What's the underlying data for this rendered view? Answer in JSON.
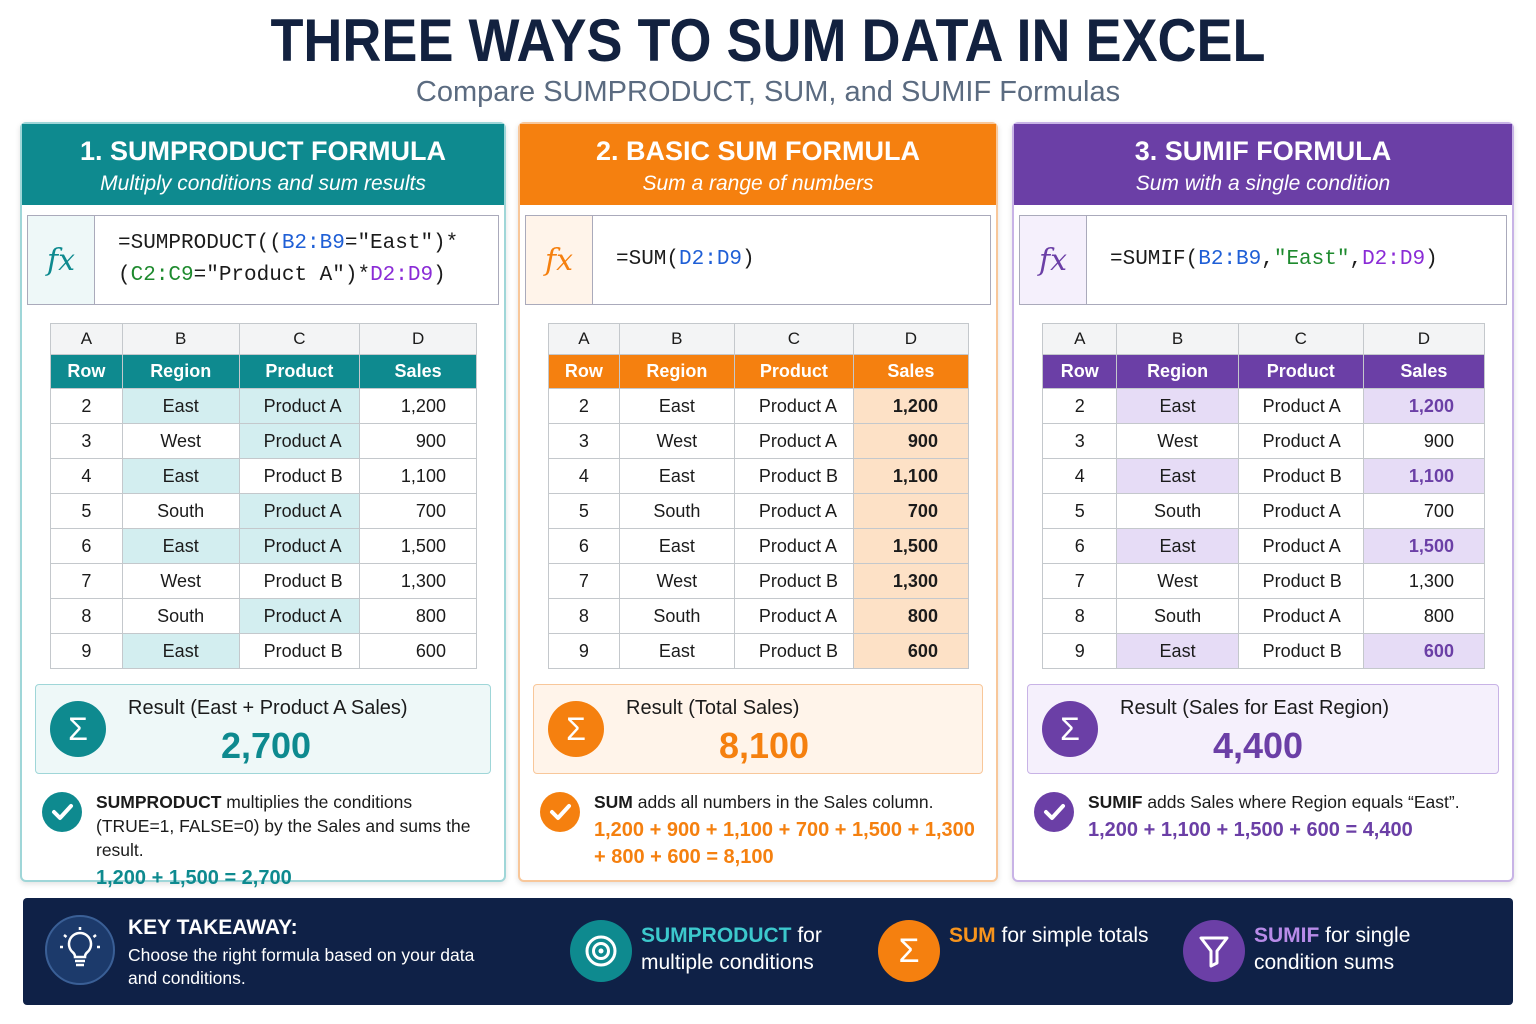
{
  "header": {
    "title": "THREE WAYS TO SUM DATA IN EXCEL",
    "subtitle": "Compare SUMPRODUCT, SUM, and SUMIF Formulas"
  },
  "fx_symbol": "fx",
  "sigma": "Σ",
  "panels": [
    {
      "title": "1. SUMPRODUCT FORMULA",
      "subtitle": "Multiply conditions and sum results",
      "color": "#0e8a8f",
      "light": "#d3eef0",
      "border": "#9fd6d8",
      "result_bg": "#eef8f8",
      "hl_text": "#1b1b1b",
      "formula": [
        [
          {
            "text": "=SUMPRODUCT((",
            "color": "#1b1b1b"
          },
          {
            "text": "B2:B9",
            "color": "#1f5fd6"
          },
          {
            "text": "=\"East\")*",
            "color": "#1b1b1b"
          }
        ],
        [
          {
            "text": "(",
            "color": "#1b1b1b"
          },
          {
            "text": "C2:C9",
            "color": "#1e8a2e"
          },
          {
            "text": "=\"Product A\")*",
            "color": "#1b1b1b"
          },
          {
            "text": "D2:D9",
            "color": "#8a2bd6"
          },
          {
            "text": ")",
            "color": "#1b1b1b"
          }
        ]
      ],
      "letters": [
        "A",
        "B",
        "C",
        "D"
      ],
      "headers": [
        "Row",
        "Region",
        "Product",
        "Sales"
      ],
      "rows": [
        {
          "cells": [
            "2",
            "East",
            "Product A",
            "1,200"
          ],
          "hl": [
            false,
            true,
            true,
            false
          ]
        },
        {
          "cells": [
            "3",
            "West",
            "Product A",
            "900"
          ],
          "hl": [
            false,
            false,
            true,
            false
          ]
        },
        {
          "cells": [
            "4",
            "East",
            "Product B",
            "1,100"
          ],
          "hl": [
            false,
            true,
            false,
            false
          ]
        },
        {
          "cells": [
            "5",
            "South",
            "Product A",
            "700"
          ],
          "hl": [
            false,
            false,
            true,
            false
          ]
        },
        {
          "cells": [
            "6",
            "East",
            "Product A",
            "1,500"
          ],
          "hl": [
            false,
            true,
            true,
            false
          ]
        },
        {
          "cells": [
            "7",
            "West",
            "Product B",
            "1,300"
          ],
          "hl": [
            false,
            false,
            false,
            false
          ]
        },
        {
          "cells": [
            "8",
            "South",
            "Product A",
            "800"
          ],
          "hl": [
            false,
            false,
            true,
            false
          ]
        },
        {
          "cells": [
            "9",
            "East",
            "Product B",
            "600"
          ],
          "hl": [
            false,
            true,
            false,
            false
          ]
        }
      ],
      "result_label": "Result (East + Product A Sales)",
      "result_value": "2,700",
      "note_bold": "SUMPRODUCT",
      "note_text": " multiplies the conditions (TRUE=1, FALSE=0) by the Sales and sums the result.",
      "calc": "1,200 + 1,500 = 2,700"
    },
    {
      "title": "2. BASIC SUM FORMULA",
      "subtitle": "Sum a range of numbers",
      "color": "#f5800f",
      "light": "#fde1c6",
      "border": "#f8c79a",
      "result_bg": "#fff4ea",
      "hl_text": "#1b1b1b",
      "formula": [
        [
          {
            "text": "=SUM(",
            "color": "#1b1b1b"
          },
          {
            "text": "D2:D9",
            "color": "#1f5fd6"
          },
          {
            "text": ")",
            "color": "#1b1b1b"
          }
        ]
      ],
      "letters": [
        "A",
        "B",
        "C",
        "D"
      ],
      "headers": [
        "Row",
        "Region",
        "Product",
        "Sales"
      ],
      "rows": [
        {
          "cells": [
            "2",
            "East",
            "Product A",
            "1,200"
          ],
          "hl": [
            false,
            false,
            false,
            true
          ]
        },
        {
          "cells": [
            "3",
            "West",
            "Product A",
            "900"
          ],
          "hl": [
            false,
            false,
            false,
            true
          ]
        },
        {
          "cells": [
            "4",
            "East",
            "Product B",
            "1,100"
          ],
          "hl": [
            false,
            false,
            false,
            true
          ]
        },
        {
          "cells": [
            "5",
            "South",
            "Product A",
            "700"
          ],
          "hl": [
            false,
            false,
            false,
            true
          ]
        },
        {
          "cells": [
            "6",
            "East",
            "Product A",
            "1,500"
          ],
          "hl": [
            false,
            false,
            false,
            true
          ]
        },
        {
          "cells": [
            "7",
            "West",
            "Product B",
            "1,300"
          ],
          "hl": [
            false,
            false,
            false,
            true
          ]
        },
        {
          "cells": [
            "8",
            "South",
            "Product A",
            "800"
          ],
          "hl": [
            false,
            false,
            false,
            true
          ]
        },
        {
          "cells": [
            "9",
            "East",
            "Product B",
            "600"
          ],
          "hl": [
            false,
            false,
            false,
            true
          ]
        }
      ],
      "result_label": "Result (Total Sales)",
      "result_value": "8,100",
      "note_bold": "SUM",
      "note_text": " adds all numbers in the Sales column.",
      "calc": "1,200 + 900 + 1,100 + 700 + 1,500 + 1,300 + 800 + 600 = 8,100"
    },
    {
      "title": "3. SUMIF FORMULA",
      "subtitle": "Sum with a single condition",
      "color": "#6b3fa6",
      "light": "#e6dcf6",
      "border": "#c8b3e6",
      "result_bg": "#f5f0fc",
      "hl_text": "#6b3fa6",
      "formula": [
        [
          {
            "text": "=SUMIF(",
            "color": "#1b1b1b"
          },
          {
            "text": "B2:B9",
            "color": "#1f5fd6"
          },
          {
            "text": ",",
            "color": "#1b1b1b"
          },
          {
            "text": "\"East\"",
            "color": "#1e8a2e"
          },
          {
            "text": ",",
            "color": "#1b1b1b"
          },
          {
            "text": "D2:D9",
            "color": "#8a2bd6"
          },
          {
            "text": ")",
            "color": "#1b1b1b"
          }
        ]
      ],
      "letters": [
        "A",
        "B",
        "C",
        "D"
      ],
      "headers": [
        "Row",
        "Region",
        "Product",
        "Sales"
      ],
      "rows": [
        {
          "cells": [
            "2",
            "East",
            "Product A",
            "1,200"
          ],
          "hl": [
            false,
            true,
            false,
            true
          ]
        },
        {
          "cells": [
            "3",
            "West",
            "Product A",
            "900"
          ],
          "hl": [
            false,
            false,
            false,
            false
          ]
        },
        {
          "cells": [
            "4",
            "East",
            "Product B",
            "1,100"
          ],
          "hl": [
            false,
            true,
            false,
            true
          ]
        },
        {
          "cells": [
            "5",
            "South",
            "Product A",
            "700"
          ],
          "hl": [
            false,
            false,
            false,
            false
          ]
        },
        {
          "cells": [
            "6",
            "East",
            "Product A",
            "1,500"
          ],
          "hl": [
            false,
            true,
            false,
            true
          ]
        },
        {
          "cells": [
            "7",
            "West",
            "Product B",
            "1,300"
          ],
          "hl": [
            false,
            false,
            false,
            false
          ]
        },
        {
          "cells": [
            "8",
            "South",
            "Product A",
            "800"
          ],
          "hl": [
            false,
            false,
            false,
            false
          ]
        },
        {
          "cells": [
            "9",
            "East",
            "Product B",
            "600"
          ],
          "hl": [
            false,
            true,
            false,
            true
          ]
        }
      ],
      "result_label": "Result (Sales for East Region)",
      "result_value": "4,400",
      "note_bold": "SUMIF",
      "note_text": " adds Sales where Region equals “East”.",
      "calc": "1,200 + 1,100 + 1,500 + 600 = 4,400"
    }
  ],
  "footer": {
    "heading": "KEY TAKEAWAY:",
    "text": "Choose the right formula based on your data and conditions.",
    "items": [
      {
        "name": "SUMPRODUCT",
        "text": " for multiple conditions",
        "color": "#0e8a8f",
        "name_color": "#3cc8cc"
      },
      {
        "name": "SUM",
        "text": " for simple totals",
        "color": "#f5800f",
        "name_color": "#f7941d"
      },
      {
        "name": "SUMIF",
        "text": " for single condition sums",
        "color": "#6b3fa6",
        "name_color": "#b88be8"
      }
    ]
  }
}
